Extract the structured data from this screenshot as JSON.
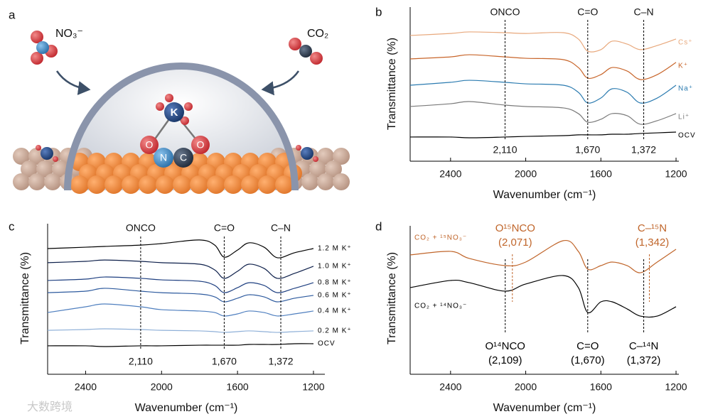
{
  "illustration": {
    "panel": "a",
    "anion": "NO₃⁻",
    "gas": "CO₂",
    "cation": "K",
    "atoms": [
      "O",
      "N",
      "C",
      "O"
    ]
  },
  "watermark": "大数跨境",
  "chart_data": [
    {
      "panel": "b",
      "type": "line",
      "x_label": "Wavenumber (cm⁻¹)",
      "y_label": "Transmittance (%)",
      "x": [
        2615,
        2400,
        2300,
        2110,
        2000,
        1800,
        1720,
        1670,
        1600,
        1540,
        1460,
        1390,
        1300,
        1200
      ],
      "xlim": [
        2615,
        1185
      ],
      "xticks": [
        2400,
        2000,
        1600,
        1200
      ],
      "ylim": [
        0,
        100
      ],
      "series": [
        {
          "name": "Cs⁺",
          "color": "#e8a87c",
          "values": [
            81.6,
            82.9,
            83.9,
            83.4,
            82.9,
            83.4,
            79.3,
            71.4,
            72.4,
            77.9,
            76.0,
            72.4,
            75.1,
            79.3
          ]
        },
        {
          "name": "K⁺",
          "color": "#c8652a",
          "values": [
            66.4,
            67.7,
            69.1,
            67.7,
            66.8,
            65.9,
            60.8,
            53.9,
            56.2,
            60.8,
            58.5,
            53.0,
            56.2,
            64.1
          ]
        },
        {
          "name": "Na⁺",
          "color": "#2b7bb0",
          "values": [
            49.3,
            51.2,
            52.5,
            51.2,
            50.2,
            49.3,
            44.7,
            37.8,
            41.0,
            47.0,
            44.7,
            37.8,
            41.0,
            49.3
          ]
        },
        {
          "name": "Li⁺",
          "color": "#7a7a7a",
          "values": [
            35.5,
            37.3,
            38.7,
            36.4,
            35.5,
            34.6,
            30.9,
            25.3,
            27.2,
            30.9,
            29.5,
            24.0,
            26.3,
            30.9
          ]
        },
        {
          "name": "OCV",
          "color": "#000000",
          "values": [
            15.7,
            15.7,
            15.2,
            15.7,
            16.1,
            16.6,
            17.1,
            17.1,
            17.1,
            17.5,
            17.5,
            18.0,
            18.4,
            18.9
          ]
        }
      ],
      "markers": [
        {
          "name": "ONCO",
          "value": 2110,
          "label": "2,110"
        },
        {
          "name": "C=O",
          "value": 1670,
          "label": "1,670"
        },
        {
          "name": "C–N",
          "value": 1372,
          "label": "1,372"
        }
      ]
    },
    {
      "panel": "c",
      "type": "line",
      "x_label": "Wavenumber (cm⁻¹)",
      "y_label": "Transmittance (%)",
      "x": [
        2600,
        2400,
        2300,
        2110,
        2000,
        1800,
        1720,
        1670,
        1600,
        1540,
        1460,
        1390,
        1300,
        1200
      ],
      "xlim": [
        2600,
        1140
      ],
      "xticks": [
        2400,
        2000,
        1600,
        1200
      ],
      "ylim": [
        0,
        100
      ],
      "series": [
        {
          "name": "1.2 M K⁺",
          "color": "#000000",
          "values": [
            83.5,
            84.4,
            84.9,
            85.8,
            86.8,
            89.2,
            85.8,
            77.8,
            82.5,
            87.3,
            84.4,
            77.4,
            80.7,
            83.5
          ]
        },
        {
          "name": "1.0 M K⁺",
          "color": "#0d1f4a",
          "values": [
            74.1,
            75.0,
            75.9,
            75.0,
            74.1,
            73.1,
            69.3,
            63.7,
            68.4,
            73.1,
            70.3,
            63.7,
            67.0,
            71.7
          ]
        },
        {
          "name": "0.8 M K⁺",
          "color": "#1e3f80",
          "values": [
            62.3,
            63.2,
            64.6,
            63.7,
            62.7,
            61.8,
            59.0,
            54.2,
            57.5,
            60.8,
            59.0,
            54.2,
            57.1,
            60.8
          ]
        },
        {
          "name": "0.6 M K⁺",
          "color": "#2d5a9e",
          "values": [
            54.2,
            55.2,
            57.1,
            55.2,
            54.2,
            53.3,
            51.4,
            48.1,
            50.5,
            52.8,
            51.4,
            48.1,
            50.5,
            52.4
          ]
        },
        {
          "name": "0.4 M K⁺",
          "color": "#4f7fbf",
          "values": [
            41.0,
            44.8,
            46.7,
            44.8,
            42.9,
            42.0,
            41.0,
            38.7,
            40.1,
            42.0,
            41.0,
            38.7,
            40.1,
            42.0
          ]
        },
        {
          "name": "0.2 M K⁺",
          "color": "#8fb0d8",
          "values": [
            29.2,
            29.7,
            30.2,
            29.7,
            29.2,
            28.8,
            28.3,
            27.8,
            28.3,
            28.8,
            28.3,
            27.8,
            28.3,
            28.8
          ]
        },
        {
          "name": "OCV",
          "color": "#000000",
          "values": [
            18.9,
            18.9,
            18.4,
            18.9,
            18.9,
            19.3,
            19.3,
            19.3,
            19.3,
            19.8,
            19.8,
            19.8,
            20.3,
            20.3
          ]
        }
      ],
      "markers": [
        {
          "name": "ONCO",
          "value": 2110,
          "label": "2,110"
        },
        {
          "name": "C=O",
          "value": 1670,
          "label": "1,670"
        },
        {
          "name": "C–N",
          "value": 1372,
          "label": "1,372"
        }
      ]
    },
    {
      "panel": "d",
      "type": "line",
      "x_label": "Wavenumber (cm⁻¹)",
      "y_label": "Transmittance (%)",
      "x": [
        2615,
        2400,
        2300,
        2110,
        2000,
        1800,
        1720,
        1670,
        1600,
        1540,
        1460,
        1390,
        1300,
        1200
      ],
      "xlim": [
        2615,
        1185
      ],
      "xticks": [
        2400,
        2000,
        1600,
        1200
      ],
      "ylim": [
        0,
        100
      ],
      "series": [
        {
          "name": "CO₂ + ¹⁵NO₃⁻",
          "color": "#c0652a",
          "values": [
            80.4,
            82.8,
            78.0,
            73.2,
            75.6,
            90.0,
            82.8,
            70.8,
            73.2,
            75.6,
            73.2,
            68.4,
            75.6,
            84.2
          ]
        },
        {
          "name": "CO₂ + ¹⁴NO₃⁻",
          "color": "#000000",
          "values": [
            58.4,
            63.2,
            61.7,
            56.0,
            60.8,
            66.5,
            58.4,
            41.6,
            48.8,
            48.8,
            44.0,
            39.2,
            39.2,
            45.5
          ]
        }
      ],
      "markers": [
        {
          "name": "O¹⁵NCO",
          "value": 2071,
          "label": "(2,071)",
          "color": "#c0652a"
        },
        {
          "name": "C–¹⁵N",
          "value": 1342,
          "label": "(1,342)",
          "color": "#c0652a"
        },
        {
          "name": "O¹⁴NCO",
          "value": 2109,
          "label": "(2,109)",
          "color": "#000000"
        },
        {
          "name": "C=O",
          "value": 1670,
          "label": "(1,670)",
          "color": "#000000"
        },
        {
          "name": "C–¹⁴N",
          "value": 1372,
          "label": "(1,372)",
          "color": "#000000"
        }
      ]
    }
  ]
}
